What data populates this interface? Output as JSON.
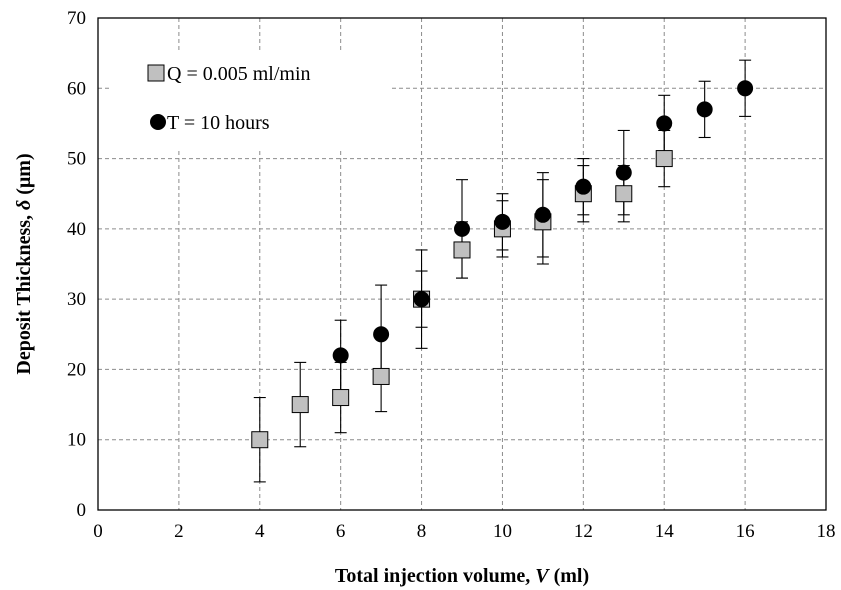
{
  "chart_data": {
    "type": "scatter",
    "xlabel": "Total injection volume,",
    "xlabel_symbol": "V",
    "xlabel_unit": "(ml)",
    "ylabel": "Deposit Thickness,",
    "ylabel_symbol": "δ",
    "ylabel_unit": "(μm)",
    "xlim": [
      0,
      18
    ],
    "ylim": [
      0,
      70
    ],
    "xticks": [
      0,
      2,
      4,
      6,
      8,
      10,
      12,
      14,
      16,
      18
    ],
    "yticks": [
      0,
      10,
      20,
      30,
      40,
      50,
      60,
      70
    ],
    "grid": true,
    "legend_placement": "top-left",
    "series": [
      {
        "name": "Q = 0.005 ml/min",
        "marker": "square",
        "color": "#c0c0c0",
        "x": [
          4,
          5,
          6,
          7,
          8,
          9,
          10,
          11,
          12,
          13,
          14
        ],
        "y": [
          10,
          15,
          16,
          19,
          30,
          37,
          40,
          41,
          45,
          45,
          50
        ],
        "y_err_low": [
          4,
          9,
          11,
          14,
          26,
          33,
          36,
          35,
          41,
          41,
          46
        ],
        "y_err_high": [
          16,
          21,
          21,
          25,
          34,
          41,
          44,
          47,
          49,
          49,
          54
        ]
      },
      {
        "name": "T = 10 hours",
        "marker": "circle",
        "color": "#000000",
        "x": [
          6,
          7,
          8,
          9,
          10,
          11,
          12,
          13,
          14,
          15,
          16
        ],
        "y": [
          22,
          25,
          30,
          40,
          41,
          42,
          46,
          48,
          55,
          57,
          60
        ],
        "y_err_low": [
          17,
          20,
          23,
          33,
          37,
          36,
          42,
          42,
          51,
          53,
          56
        ],
        "y_err_high": [
          27,
          32,
          37,
          47,
          45,
          48,
          50,
          54,
          59,
          61,
          64
        ]
      }
    ]
  }
}
